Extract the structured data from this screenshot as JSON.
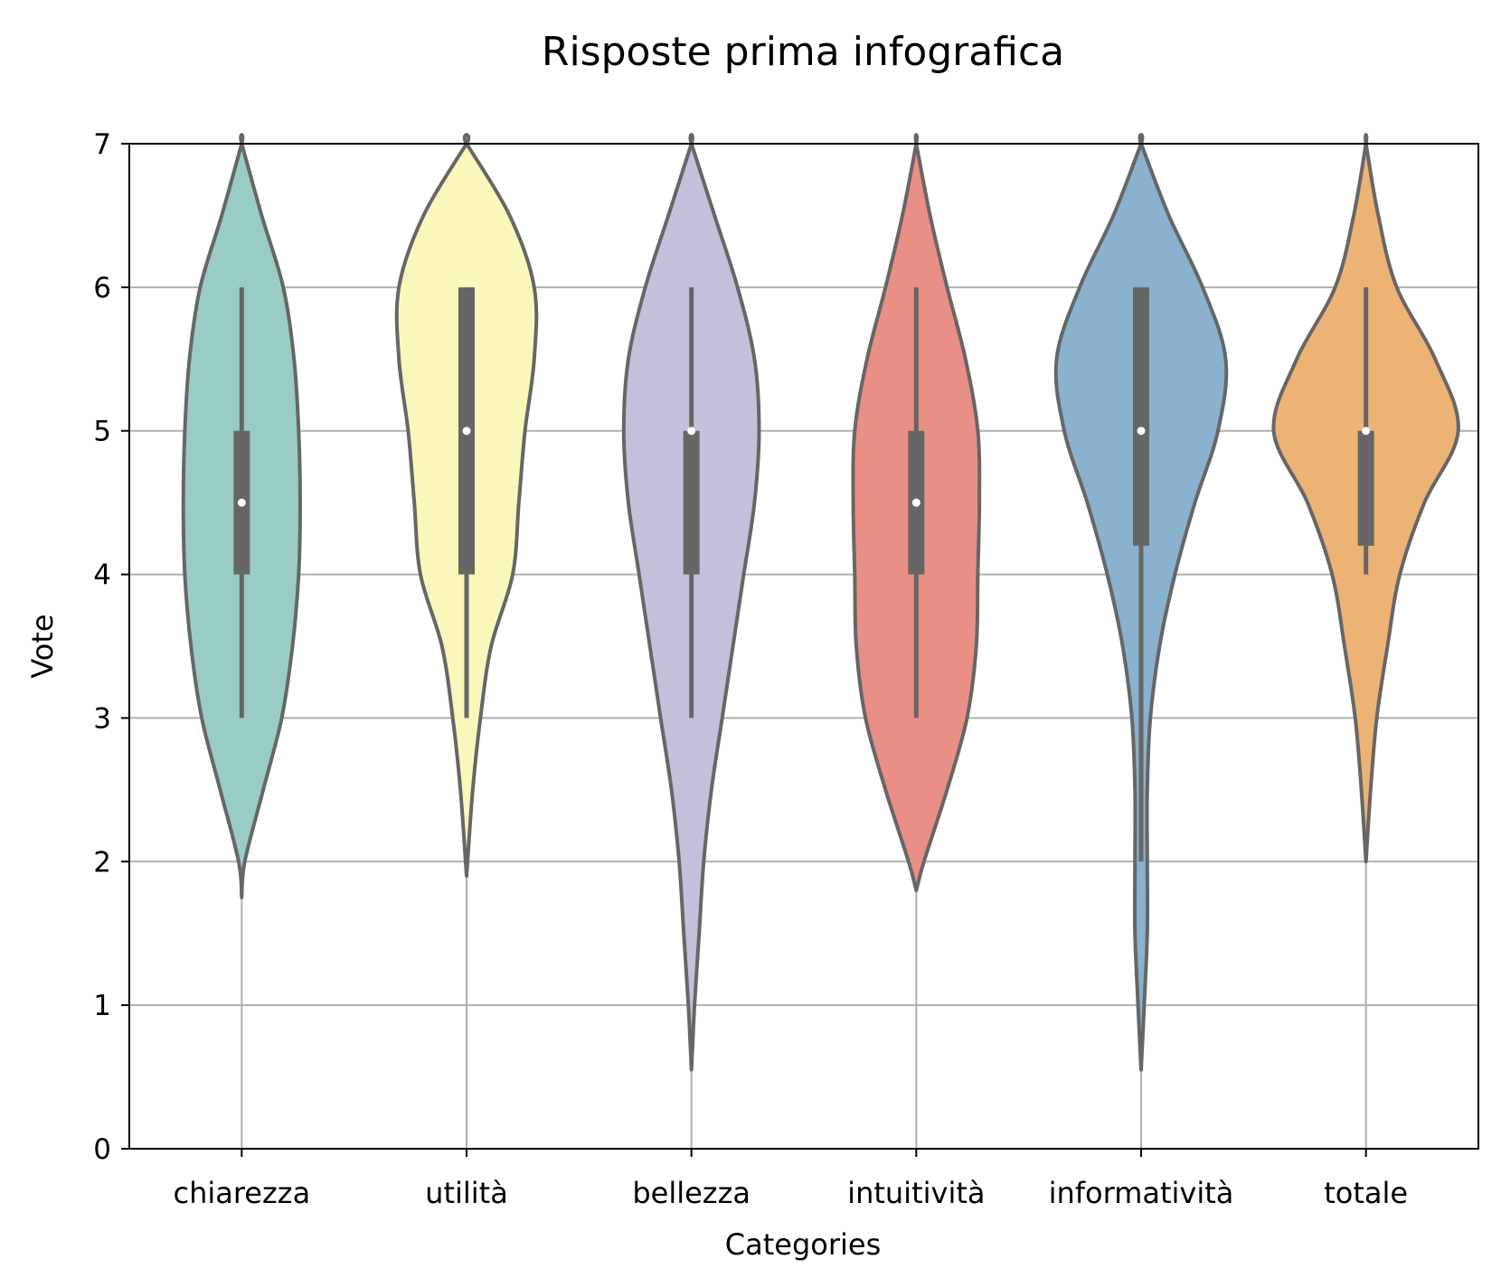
{
  "chart_data": {
    "type": "violin",
    "title": "Risposte prima infografica",
    "xlabel": "Categories",
    "ylabel": "Vote",
    "ylim": [
      0,
      7
    ],
    "yticks": [
      "0",
      "1",
      "2",
      "3",
      "4",
      "5",
      "6",
      "7"
    ],
    "grid": true,
    "categories": [
      "chiarezza",
      "utilità",
      "bellezza",
      "intuitività",
      "informatività",
      "totale"
    ],
    "colors": [
      "#99CCC4",
      "#F9F8BA",
      "#C3C0DA",
      "#EA8F86",
      "#8AB1CD",
      "#ECB375"
    ],
    "outline_color": "#666666",
    "series": [
      {
        "category": "chiarezza",
        "min": 3,
        "q1": 4,
        "median": 4.5,
        "q3": 5,
        "max": 6,
        "density": [
          [
            1.75,
            0.0
          ],
          [
            2.0,
            0.02
          ],
          [
            2.5,
            0.14
          ],
          [
            3.0,
            0.26
          ],
          [
            3.5,
            0.33
          ],
          [
            4.0,
            0.37
          ],
          [
            4.5,
            0.38
          ],
          [
            5.0,
            0.37
          ],
          [
            5.5,
            0.34
          ],
          [
            6.0,
            0.27
          ],
          [
            6.5,
            0.13
          ],
          [
            7.0,
            0.0
          ]
        ]
      },
      {
        "category": "utilità",
        "min": 3,
        "q1": 4,
        "median": 5,
        "q3": 6,
        "max": 6,
        "density": [
          [
            1.9,
            0.0
          ],
          [
            2.5,
            0.04
          ],
          [
            3.0,
            0.09
          ],
          [
            3.5,
            0.16
          ],
          [
            4.0,
            0.3
          ],
          [
            4.5,
            0.34
          ],
          [
            5.0,
            0.38
          ],
          [
            5.5,
            0.44
          ],
          [
            6.0,
            0.44
          ],
          [
            6.5,
            0.28
          ],
          [
            7.0,
            0.0
          ]
        ]
      },
      {
        "category": "bellezza",
        "min": 3,
        "q1": 4,
        "median": 5,
        "q3": 5,
        "max": 6,
        "density": [
          [
            0.55,
            0.0
          ],
          [
            1.0,
            0.02
          ],
          [
            1.5,
            0.05
          ],
          [
            2.0,
            0.08
          ],
          [
            2.5,
            0.13
          ],
          [
            3.0,
            0.2
          ],
          [
            3.5,
            0.27
          ],
          [
            4.0,
            0.34
          ],
          [
            4.5,
            0.41
          ],
          [
            5.0,
            0.44
          ],
          [
            5.5,
            0.41
          ],
          [
            6.0,
            0.3
          ],
          [
            6.5,
            0.15
          ],
          [
            7.0,
            0.0
          ]
        ]
      },
      {
        "category": "intuitività",
        "min": 3,
        "q1": 4,
        "median": 4.5,
        "q3": 5,
        "max": 6,
        "density": [
          [
            1.8,
            0.0
          ],
          [
            2.0,
            0.05
          ],
          [
            2.5,
            0.2
          ],
          [
            3.0,
            0.33
          ],
          [
            3.5,
            0.39
          ],
          [
            4.0,
            0.4
          ],
          [
            4.5,
            0.41
          ],
          [
            5.0,
            0.4
          ],
          [
            5.5,
            0.32
          ],
          [
            6.0,
            0.2
          ],
          [
            6.5,
            0.09
          ],
          [
            7.0,
            0.0
          ]
        ]
      },
      {
        "category": "informatività",
        "min": 2,
        "q1": 4.2,
        "median": 5,
        "q3": 6,
        "max": 6,
        "density": [
          [
            0.55,
            0.0
          ],
          [
            1.0,
            0.02
          ],
          [
            1.5,
            0.04
          ],
          [
            2.0,
            0.04
          ],
          [
            2.5,
            0.04
          ],
          [
            3.0,
            0.06
          ],
          [
            3.5,
            0.12
          ],
          [
            4.0,
            0.22
          ],
          [
            4.5,
            0.35
          ],
          [
            5.0,
            0.5
          ],
          [
            5.5,
            0.55
          ],
          [
            6.0,
            0.4
          ],
          [
            6.5,
            0.18
          ],
          [
            7.0,
            0.0
          ]
        ]
      },
      {
        "category": "totale",
        "min": 4,
        "q1": 4.2,
        "median": 5,
        "q3": 5,
        "max": 6,
        "density": [
          [
            2.0,
            0.0
          ],
          [
            2.5,
            0.03
          ],
          [
            3.0,
            0.07
          ],
          [
            3.5,
            0.14
          ],
          [
            4.0,
            0.22
          ],
          [
            4.5,
            0.38
          ],
          [
            5.0,
            0.6
          ],
          [
            5.5,
            0.45
          ],
          [
            6.0,
            0.2
          ],
          [
            6.5,
            0.08
          ],
          [
            7.0,
            0.0
          ]
        ]
      }
    ]
  }
}
